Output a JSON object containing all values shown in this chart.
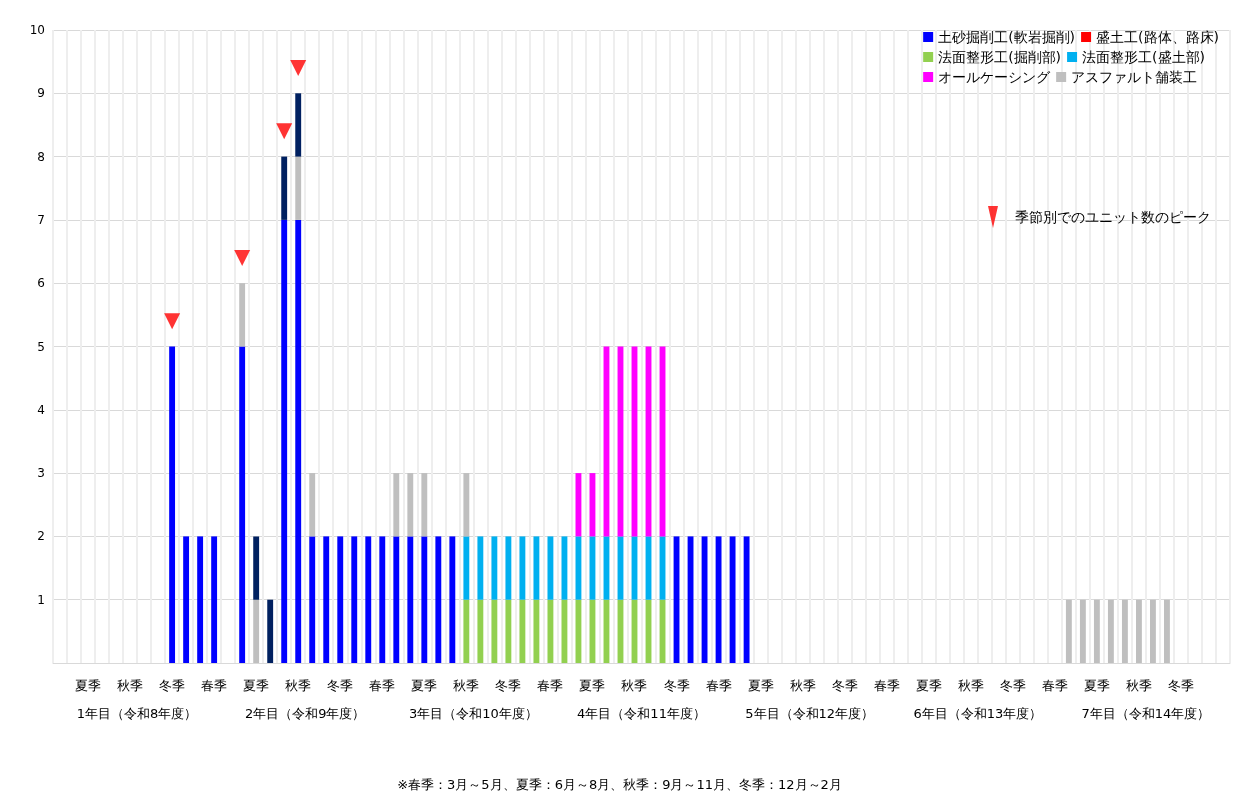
{
  "chart_data": {
    "type": "bar",
    "stacked": true,
    "grid": true,
    "legend": "top right",
    "marker": "triangle",
    "categories": [
      null,
      null,
      "夏季",
      null,
      null,
      "秋季",
      null,
      null,
      "冬季",
      null,
      null,
      "春季",
      null,
      null,
      "夏季",
      null,
      null,
      "秋季",
      null,
      null,
      "冬季",
      null,
      null,
      "春季",
      null,
      null,
      "夏季",
      null,
      null,
      "秋季",
      null,
      null,
      "冬季",
      null,
      null,
      "春季",
      null,
      null,
      "夏季",
      null,
      null,
      "秋季",
      null,
      null,
      "冬季",
      null,
      null,
      "春季",
      null,
      null,
      "夏季",
      null,
      null,
      "秋季",
      null,
      null,
      "冬季",
      null,
      null,
      "春季",
      null,
      null,
      "夏季",
      null,
      null,
      "秋季",
      null,
      null,
      "冬季",
      null,
      null,
      "春季",
      null,
      null,
      "夏季",
      null,
      null,
      "秋季",
      null,
      null,
      "冬季",
      null,
      null,
      null
    ],
    "ylim": [
      0,
      10
    ],
    "yticks": [
      {
        "value": 0,
        "label": null
      },
      1,
      2,
      3,
      4,
      5,
      6,
      7,
      8,
      9,
      10
    ],
    "series": [
      {
        "name": "土砂掘削工(軟岩掘削)",
        "color": "#0000ff",
        "values": [
          null,
          null,
          null,
          null,
          null,
          null,
          null,
          null,
          5,
          2,
          2,
          2,
          null,
          5,
          null,
          null,
          7,
          7,
          2,
          2,
          2,
          2,
          2,
          2,
          2,
          2,
          2,
          2,
          2,
          null,
          null,
          null,
          null,
          null,
          null,
          null,
          null,
          null,
          null,
          null,
          null,
          null,
          null,
          null,
          2,
          2,
          2,
          2,
          2,
          2,
          null,
          null,
          null,
          null,
          null,
          null,
          null,
          null,
          null,
          null,
          null,
          null,
          null,
          null,
          null,
          null,
          null,
          null,
          null,
          null,
          null,
          null,
          null,
          null,
          null,
          null,
          null,
          null,
          null,
          null,
          null,
          null,
          null,
          null
        ]
      },
      {
        "name": "盛土工(路体、路床)",
        "color": "#ff0000",
        "values": [
          null,
          null,
          null,
          null,
          null,
          null,
          null,
          null,
          null,
          null,
          null,
          null,
          null,
          null,
          null,
          null,
          null,
          null,
          null,
          null,
          null,
          null,
          null,
          null,
          null,
          null,
          null,
          null,
          null,
          null,
          null,
          null,
          null,
          null,
          null,
          null,
          null,
          null,
          null,
          null,
          null,
          null,
          null,
          null,
          null,
          null,
          null,
          null,
          null,
          null,
          null,
          null,
          null,
          null,
          null,
          null,
          null,
          null,
          null,
          null,
          null,
          null,
          null,
          null,
          null,
          null,
          null,
          null,
          null,
          null,
          null,
          null,
          null,
          null,
          null,
          null,
          null,
          null,
          null,
          null,
          null,
          null,
          null,
          null
        ]
      },
      {
        "name": "法面整形工(掘削部)",
        "color": "#92d050",
        "values": [
          null,
          null,
          null,
          null,
          null,
          null,
          null,
          null,
          null,
          null,
          null,
          null,
          null,
          null,
          null,
          null,
          null,
          null,
          null,
          null,
          null,
          null,
          null,
          null,
          null,
          null,
          null,
          null,
          null,
          1,
          1,
          1,
          1,
          1,
          1,
          1,
          1,
          1,
          1,
          1,
          1,
          1,
          1,
          1,
          null,
          null,
          null,
          null,
          null,
          null,
          null,
          null,
          null,
          null,
          null,
          null,
          null,
          null,
          null,
          null,
          null,
          null,
          null,
          null,
          null,
          null,
          null,
          null,
          null,
          null,
          null,
          null,
          null,
          null,
          null,
          null,
          null,
          null,
          null,
          null,
          null,
          null,
          null,
          null
        ]
      },
      {
        "name": "法面整形工(盛土部)",
        "color": "#00b0f0",
        "values": [
          null,
          null,
          null,
          null,
          null,
          null,
          null,
          null,
          null,
          null,
          null,
          null,
          null,
          null,
          null,
          null,
          null,
          null,
          null,
          null,
          null,
          null,
          null,
          null,
          null,
          null,
          null,
          null,
          null,
          1,
          1,
          1,
          1,
          1,
          1,
          1,
          1,
          1,
          1,
          1,
          1,
          1,
          1,
          1,
          null,
          null,
          null,
          null,
          null,
          null,
          null,
          null,
          null,
          null,
          null,
          null,
          null,
          null,
          null,
          null,
          null,
          null,
          null,
          null,
          null,
          null,
          null,
          null,
          null,
          null,
          null,
          null,
          null,
          null,
          null,
          null,
          null,
          null,
          null,
          null,
          null,
          null,
          null,
          null
        ]
      },
      {
        "name": "オールケーシング",
        "color": "#ff00ff",
        "values": [
          null,
          null,
          null,
          null,
          null,
          null,
          null,
          null,
          null,
          null,
          null,
          null,
          null,
          null,
          null,
          null,
          null,
          null,
          null,
          null,
          null,
          null,
          null,
          null,
          null,
          null,
          null,
          null,
          null,
          null,
          null,
          null,
          null,
          null,
          null,
          null,
          null,
          1,
          1,
          3,
          3,
          3,
          3,
          3,
          null,
          null,
          null,
          null,
          null,
          null,
          null,
          null,
          null,
          null,
          null,
          null,
          null,
          null,
          null,
          null,
          null,
          null,
          null,
          null,
          null,
          null,
          null,
          null,
          null,
          null,
          null,
          null,
          null,
          null,
          null,
          null,
          null,
          null,
          null,
          null,
          null,
          null,
          null,
          null
        ]
      },
      {
        "name": "アスファルト舗装工",
        "color": "#bfbfbf",
        "values": [
          null,
          null,
          null,
          null,
          null,
          null,
          null,
          null,
          null,
          null,
          null,
          null,
          null,
          1,
          1,
          null,
          null,
          1,
          1,
          null,
          null,
          null,
          null,
          null,
          1,
          1,
          1,
          null,
          null,
          1,
          null,
          null,
          null,
          null,
          null,
          null,
          null,
          null,
          null,
          null,
          null,
          null,
          null,
          null,
          null,
          null,
          null,
          null,
          null,
          null,
          null,
          null,
          null,
          null,
          null,
          null,
          null,
          null,
          null,
          null,
          null,
          null,
          null,
          null,
          null,
          null,
          null,
          null,
          null,
          null,
          null,
          null,
          1,
          1,
          1,
          1,
          1,
          1,
          1,
          1,
          null,
          null,
          null,
          null
        ]
      },
      {
        "color": "#002060",
        "values": [
          null,
          null,
          null,
          null,
          null,
          null,
          null,
          null,
          null,
          null,
          null,
          null,
          null,
          null,
          1,
          1,
          1,
          1,
          null,
          null,
          null,
          null,
          null,
          null,
          null,
          null,
          null,
          null,
          null,
          null,
          null,
          null,
          null,
          null,
          null,
          null,
          null,
          null,
          null,
          null,
          null,
          null,
          null,
          null,
          null,
          null,
          null,
          null,
          null,
          null,
          null,
          null,
          null,
          null,
          null,
          null,
          null,
          null,
          null,
          null,
          null,
          null,
          null,
          null,
          null,
          null,
          null,
          null,
          null,
          null,
          null,
          null,
          null,
          null,
          null,
          null,
          null,
          null,
          null,
          null,
          null,
          null,
          null,
          null
        ]
      },
      {
        "name": "季節別でのユニット数のピーク",
        "type": "scatter",
        "color": "#ff0000",
        "values": [
          null,
          null,
          null,
          null,
          null,
          null,
          null,
          null,
          5.4,
          null,
          null,
          null,
          null,
          6.4,
          null,
          null,
          8.4,
          9.4,
          null,
          null,
          null,
          null,
          null,
          null,
          null,
          null,
          null,
          null,
          null,
          null,
          null,
          null,
          null,
          null,
          null,
          null,
          null,
          null,
          null,
          null,
          null,
          null,
          null,
          null,
          null,
          null,
          null,
          null,
          null,
          null,
          null,
          null,
          null,
          null,
          null,
          null,
          null,
          null,
          null,
          null,
          null,
          null,
          null,
          null,
          null,
          null,
          null,
          null,
          null,
          null,
          null,
          null,
          null,
          null,
          null,
          null,
          null,
          null,
          null,
          null,
          null,
          null,
          null,
          null
        ]
      }
    ],
    "annotations": [
      "1年目（令和8年度）",
      "2年目（令和9年度）",
      "3年目（令和10年度）",
      "4年目（令和11年度）",
      "5年目（令和12年度）",
      "6年目（令和13年度）",
      "7年目（令和14年度）",
      "※春季：3月～5月、夏季：6月～8月、秋季：9月～11月、冬季：12月～2月"
    ]
  }
}
